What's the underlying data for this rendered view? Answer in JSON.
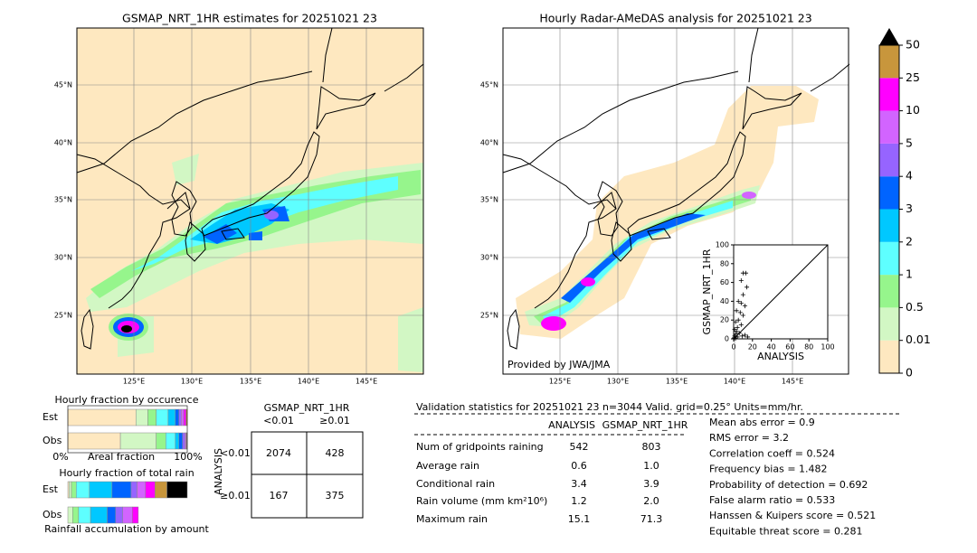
{
  "left_map": {
    "title": "GSMAP_NRT_1HR estimates for 20251021 23",
    "lat_labels": [
      "45°N",
      "40°N",
      "35°N",
      "30°N",
      "25°N"
    ],
    "lon_labels": [
      "125°E",
      "130°E",
      "135°E",
      "140°E",
      "145°E"
    ]
  },
  "right_map": {
    "title": "Hourly Radar-AMeDAS analysis for 20251021 23",
    "lat_labels": [
      "45°N",
      "40°N",
      "35°N",
      "30°N",
      "25°N"
    ],
    "lon_labels": [
      "125°E",
      "130°E",
      "135°E",
      "140°E",
      "145°E"
    ],
    "credit": "Provided by JWA/JMA"
  },
  "colorbar": {
    "ticks": [
      "0",
      "0.01",
      "0.5",
      "1",
      "2",
      "3",
      "4",
      "5",
      "10",
      "25",
      "50"
    ],
    "colors": [
      "#fee8c0",
      "#d2f7c4",
      "#96f58c",
      "#5effff",
      "#00c8ff",
      "#0064ff",
      "#9664ff",
      "#d264ff",
      "#ff00ff",
      "#c8963c"
    ],
    "extend_color": "#000000"
  },
  "chart_data": [
    {
      "type": "scatter",
      "xlabel": "ANALYSIS",
      "ylabel": "GSMAP_NRT_1HR",
      "xlim": [
        0,
        100
      ],
      "ylim": [
        0,
        100
      ],
      "xticks": [
        0,
        20,
        40,
        60,
        80,
        100
      ],
      "yticks": [
        0,
        20,
        40,
        60,
        80,
        100
      ],
      "x": [
        10,
        13,
        8,
        14,
        10,
        5,
        8,
        12,
        3,
        7,
        10,
        5,
        2,
        8,
        4,
        1,
        3,
        6,
        2,
        1,
        4,
        0.5,
        2,
        9,
        12,
        15
      ],
      "y": [
        70,
        70,
        62,
        55,
        47,
        40,
        38,
        35,
        30,
        28,
        25,
        20,
        18,
        15,
        12,
        10,
        8,
        6,
        5,
        3,
        2,
        1,
        0.5,
        3,
        4,
        2
      ],
      "color": "#000000"
    },
    {
      "type": "stacked_bar",
      "title": "Hourly fraction by occurence",
      "categories": [
        "Est",
        "Obs"
      ],
      "x_left_label": "0%",
      "xlabel": "Areal fraction",
      "x_right_label": "100%",
      "xlim": [
        0,
        1
      ],
      "series": [
        {
          "color": "#fee8c0",
          "values": [
            0.57,
            0.44
          ]
        },
        {
          "color": "#d2f7c4",
          "values": [
            0.1,
            0.3
          ]
        },
        {
          "color": "#96f58c",
          "values": [
            0.07,
            0.08
          ]
        },
        {
          "color": "#5effff",
          "values": [
            0.1,
            0.08
          ]
        },
        {
          "color": "#00c8ff",
          "values": [
            0.06,
            0.03
          ]
        },
        {
          "color": "#0064ff",
          "values": [
            0.03,
            0.03
          ]
        },
        {
          "color": "#9664ff",
          "values": [
            0.02,
            0.02
          ]
        },
        {
          "color": "#d264ff",
          "values": [
            0.02,
            0.01
          ]
        },
        {
          "color": "#ff00ff",
          "values": [
            0.02,
            0.005
          ]
        },
        {
          "color": "#c8963c",
          "values": [
            0.01,
            0.005
          ]
        },
        {
          "color": "#000000",
          "values": [
            0,
            0
          ]
        }
      ]
    },
    {
      "type": "stacked_bar",
      "title": "Hourly fraction of total rain",
      "categories": [
        "Est",
        "Obs"
      ],
      "xlabel": "Rainfall accumulation by amount",
      "xlim": [
        0,
        1
      ],
      "series": [
        {
          "color": "#fee8c0",
          "values": [
            0.01,
            0
          ]
        },
        {
          "color": "#d2f7c4",
          "values": [
            0.02,
            0.04
          ]
        },
        {
          "color": "#96f58c",
          "values": [
            0.04,
            0.05
          ]
        },
        {
          "color": "#5effff",
          "values": [
            0.11,
            0.1
          ]
        },
        {
          "color": "#00c8ff",
          "values": [
            0.19,
            0.14
          ]
        },
        {
          "color": "#0064ff",
          "values": [
            0.16,
            0.07
          ]
        },
        {
          "color": "#9664ff",
          "values": [
            0.05,
            0.06
          ]
        },
        {
          "color": "#d264ff",
          "values": [
            0.07,
            0.08
          ]
        },
        {
          "color": "#ff00ff",
          "values": [
            0.08,
            0.05
          ]
        },
        {
          "color": "#c8963c",
          "values": [
            0.1,
            0
          ]
        },
        {
          "color": "#000000",
          "values": [
            0.17,
            0
          ]
        }
      ]
    }
  ],
  "contingency": {
    "title": "GSMAP_NRT_1HR",
    "col_labels": [
      "<0.01",
      "≥0.01"
    ],
    "row_title": "ANALYSIS",
    "row_labels": [
      "<0.01",
      "≥0.01"
    ],
    "cells": [
      [
        2074,
        428
      ],
      [
        167,
        375
      ]
    ]
  },
  "stats": {
    "title": "Validation statistics for 20251021 23  n=3044 Valid. grid=0.25° Units=mm/hr.",
    "columns": [
      "ANALYSIS",
      "GSMAP_NRT_1HR"
    ],
    "rows": [
      [
        "Num of gridpoints raining",
        "542",
        "803"
      ],
      [
        "Average rain",
        "0.6",
        "1.0"
      ],
      [
        "Conditional rain",
        "3.4",
        "3.9"
      ],
      [
        "Rain volume (mm km²10⁶)",
        "1.2",
        "2.0"
      ],
      [
        "Maximum rain",
        "15.1",
        "71.3"
      ]
    ],
    "scores": [
      "Mean abs error =    0.9",
      "RMS error =    3.2",
      "Correlation coeff =  0.524",
      "Frequency bias =  1.482",
      "Probability of detection =  0.692",
      "False alarm ratio =  0.533",
      "Hanssen & Kuipers score =  0.521",
      "Equitable threat score =  0.281"
    ]
  }
}
